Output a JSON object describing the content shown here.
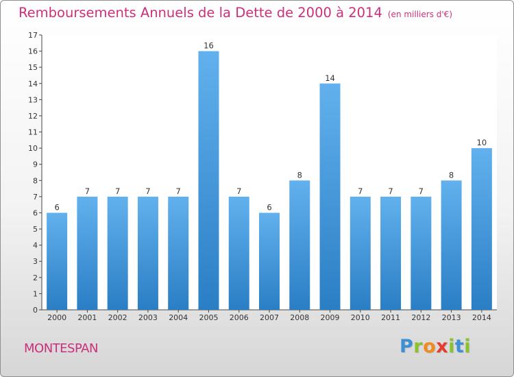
{
  "header": {
    "title": "Remboursements Annuels de la Dette de 2000 à 2014",
    "unit": "(en milliers d'€)"
  },
  "footer": {
    "commune": "MONTESPAN",
    "logo": "Proxiti"
  },
  "colors": {
    "accent": "#cc2f7a",
    "bar_light": "#62b1ee",
    "bar_dark": "#2a7ec4"
  },
  "chart_data": {
    "type": "bar",
    "title": "Remboursements Annuels de la Dette de 2000 à 2014",
    "subtitle": "(en milliers d'€)",
    "categories": [
      "2000",
      "2001",
      "2002",
      "2003",
      "2004",
      "2005",
      "2006",
      "2007",
      "2008",
      "2009",
      "2010",
      "2011",
      "2012",
      "2013",
      "2014"
    ],
    "values": [
      6,
      7,
      7,
      7,
      7,
      16,
      7,
      6,
      8,
      14,
      7,
      7,
      7,
      8,
      10
    ],
    "y_ticks": [
      "0",
      "1",
      "2",
      "3",
      "4",
      "5",
      "6",
      "7",
      "8",
      "9",
      "10",
      "11",
      "12",
      "13",
      "14",
      "15",
      "16",
      "17"
    ],
    "ylim": [
      0,
      17
    ],
    "xlabel": "",
    "ylabel": "",
    "grid": false,
    "legend": "none"
  }
}
